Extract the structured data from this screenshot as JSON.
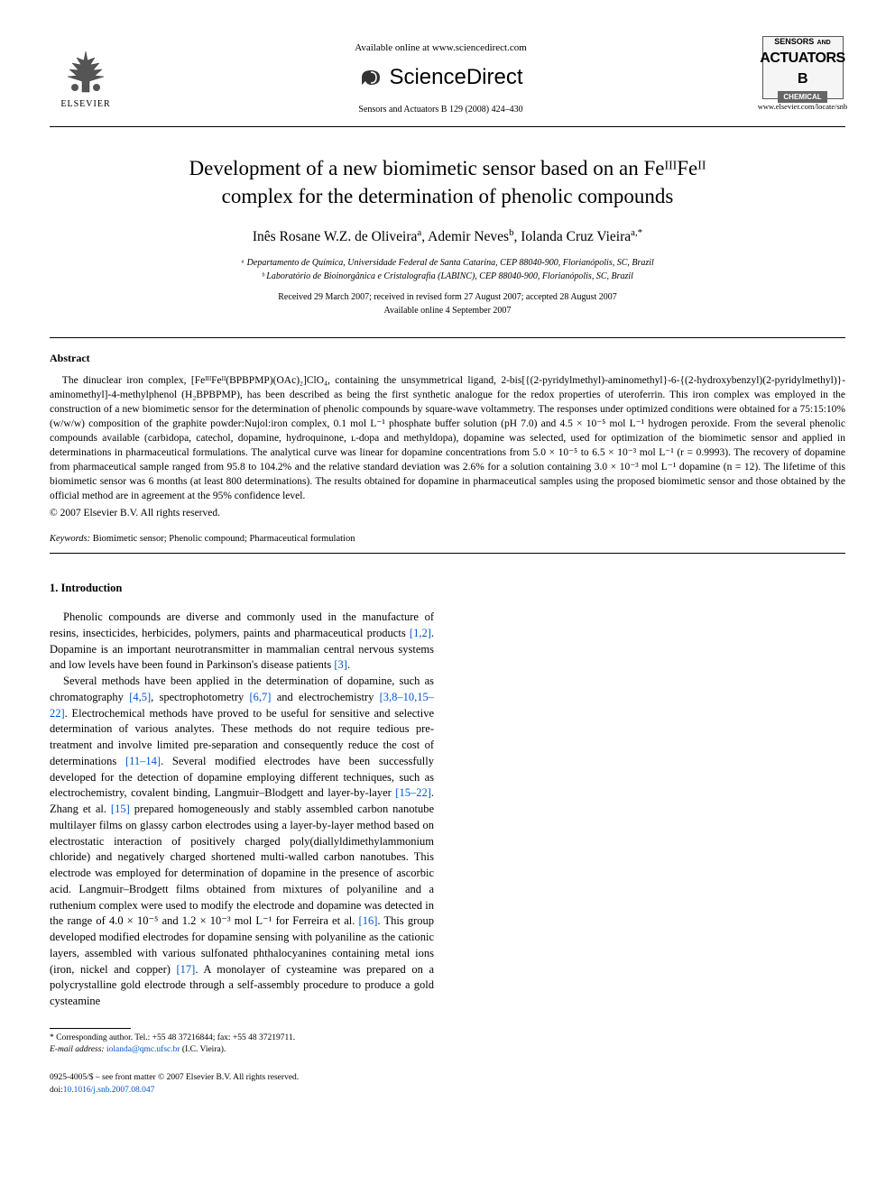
{
  "header": {
    "available_text": "Available online at www.sciencedirect.com",
    "sd_brand": "ScienceDirect",
    "journal_citation": "Sensors and Actuators B 129 (2008) 424–430",
    "elsevier_label": "ELSEVIER",
    "journal_logo": {
      "line1": "SENSORS",
      "line1b": "AND",
      "line2": "ACTUATORS",
      "line3": "B",
      "sub": "CHEMICAL"
    },
    "journal_url": "www.elsevier.com/locate/snb"
  },
  "title_lines": [
    "Development of a new biomimetic sensor based on an FeᴵᴵᴵFeᴵᴵ",
    "complex for the determination of phenolic compounds"
  ],
  "authors_html": "Inês Rosane W.Z. de Oliveira<span class='sup'>a</span>, Ademir Neves<span class='sup'>b</span>, Iolanda Cruz Vieira<span class='sup'>a,*</span>",
  "affiliations": [
    "ᵃ Departamento de Química, Universidade Federal de Santa Catarina, CEP 88040-900, Florianópolis, SC, Brazil",
    "ᵇ Laboratório de Bioinorgânica e Cristalografia (LABINC), CEP 88040-900, Florianópolis, SC, Brazil"
  ],
  "dates": [
    "Received 29 March 2007; received in revised form 27 August 2007; accepted 28 August 2007",
    "Available online 4 September 2007"
  ],
  "abstract": {
    "heading": "Abstract",
    "body": "The dinuclear iron complex, [FeᴵᴵᴵFeᴵᴵ(BPBPMP)(OAc)₂]ClO₄, containing the unsymmetrical ligand, 2-bis[{(2-pyridylmethyl)-aminomethyl}-6-{(2-hydroxybenzyl)(2-pyridylmethyl)}-aminomethyl]-4-methylphenol (H₂BPBPMP), has been described as being the first synthetic analogue for the redox properties of uteroferrin. This iron complex was employed in the construction of a new biomimetic sensor for the determination of phenolic compounds by square-wave voltammetry. The responses under optimized conditions were obtained for a 75:15:10% (w/w/w) composition of the graphite powder:Nujol:iron complex, 0.1 mol L⁻¹ phosphate buffer solution (pH 7.0) and 4.5 × 10⁻⁵ mol L⁻¹ hydrogen peroxide. From the several phenolic compounds available (carbidopa, catechol, dopamine, hydroquinone, ʟ-dopa and methyldopa), dopamine was selected, used for optimization of the biomimetic sensor and applied in determinations in pharmaceutical formulations. The analytical curve was linear for dopamine concentrations from 5.0 × 10⁻⁵ to 6.5 × 10⁻³ mol L⁻¹ (r = 0.9993). The recovery of dopamine from pharmaceutical sample ranged from 95.8 to 104.2% and the relative standard deviation was 2.6% for a solution containing 3.0 × 10⁻³ mol L⁻¹ dopamine (n = 12). The lifetime of this biomimetic sensor was 6 months (at least 800 determinations). The results obtained for dopamine in pharmaceutical samples using the proposed biomimetic sensor and those obtained by the official method are in agreement at the 95% confidence level.",
    "copyright": "© 2007 Elsevier B.V. All rights reserved."
  },
  "keywords": {
    "label": "Keywords:",
    "text": " Biomimetic sensor; Phenolic compound; Pharmaceutical formulation"
  },
  "section1": {
    "heading": "1. Introduction",
    "para1_pre": "Phenolic compounds are diverse and commonly used in the manufacture of resins, insecticides, herbicides, polymers, paints and pharmaceutical products ",
    "para1_ref1": "[1,2]",
    "para1_mid": ". Dopamine is an important neurotransmitter in mammalian central nervous systems and low levels have been found in Parkinson's disease patients ",
    "para1_ref2": "[3]",
    "para1_end": ".",
    "para2_a": "Several methods have been applied in the determination of dopamine, such as chromatography ",
    "para2_r1": "[4,5]",
    "para2_b": ", spectrophotometry ",
    "para2_r2": "[6,7]",
    "para2_c": " and electrochemistry ",
    "para2_r3": "[3,8–10,15–22]",
    "para2_d": ". Electrochemical methods have proved to be useful for sensitive and selective determination of various analytes. These methods do not require tedious pre-treatment and involve limited pre-separation and consequently reduce the cost of determinations ",
    "para2_r4": "[11–14]",
    "para2_e": ". Several modified electrodes have been successfully developed for the detection of dopamine employing different techniques, such as electrochemistry, covalent binding, Langmuir–Blodgett and layer-by-layer ",
    "para2_r5": "[15–22]",
    "para2_f": ". Zhang et al. ",
    "para2_r6": "[15]",
    "para2_g": " prepared homogeneously and stably assembled carbon nanotube multilayer films on glassy carbon electrodes using a layer-by-layer method based on electrostatic interaction of positively charged poly(diallyldimethylammonium chloride) and negatively charged shortened multi-walled carbon nanotubes. This electrode was employed for determination of dopamine in the presence of ascorbic acid. Langmuir–Brodgett films obtained from mixtures of polyaniline and a ruthenium complex were used to modify the electrode and dopamine was detected in the range of 4.0 × 10⁻⁵ and 1.2 × 10⁻³ mol L⁻¹ for Ferreira et al. ",
    "para2_r7": "[16]",
    "para2_h": ". This group developed modified electrodes for dopamine sensing with polyaniline as the cationic layers, assembled with various sulfonated phthalocyanines containing metal ions (iron, nickel and copper) ",
    "para2_r8": "[17]",
    "para2_i": ". A monolayer of cysteamine was prepared on a polycrystalline gold electrode through a self-assembly procedure to produce a gold cysteamine"
  },
  "footnote": {
    "corr": "* Corresponding author. Tel.: +55 48 37216844; fax: +55 48 37219711.",
    "email_label": "E-mail address:",
    "email": "iolanda@qmc.ufsc.br",
    "email_suffix": "(I.C. Vieira)."
  },
  "bottom": {
    "line1": "0925-4005/$ – see front matter © 2007 Elsevier B.V. All rights reserved.",
    "doi_label": "doi:",
    "doi": "10.1016/j.snb.2007.08.047"
  },
  "colors": {
    "link": "#0055cc",
    "text": "#000000",
    "bg": "#ffffff"
  }
}
